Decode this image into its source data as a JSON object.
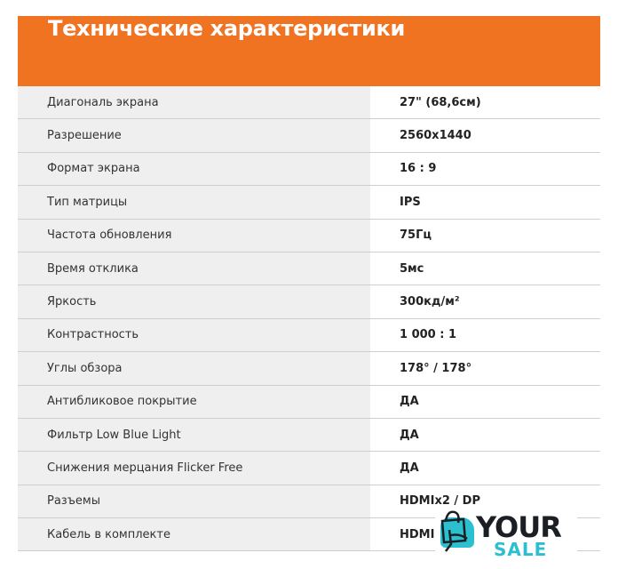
{
  "title": "Технические характеристики",
  "colors": {
    "accent": "#f07322",
    "logo_teal": "#2bbfcf"
  },
  "specs": [
    {
      "label": "Диагональ экрана",
      "value": "27\" (68,6см)"
    },
    {
      "label": "Разрешение",
      "value": "2560x1440"
    },
    {
      "label": "Формат экрана",
      "value": "16 : 9"
    },
    {
      "label": "Тип матрицы",
      "value": "IPS"
    },
    {
      "label": "Частота обновления",
      "value": "75Гц"
    },
    {
      "label": "Время отклика",
      "value": "5мс"
    },
    {
      "label": "Яркость",
      "value": "300кд/м²"
    },
    {
      "label": "Контрастность",
      "value": "1 000 : 1"
    },
    {
      "label": "Углы обзора",
      "value": "178° / 178°"
    },
    {
      "label": "Антибликовое покрытие",
      "value": "ДА"
    },
    {
      "label": "Фильтр Low Blue Light",
      "value": "ДА"
    },
    {
      "label": "Снижения мерцания Flicker Free",
      "value": "ДА"
    },
    {
      "label": "Разъемы",
      "value": "HDMIx2 / DP"
    },
    {
      "label": "Кабель в комплекте",
      "value": "HDMI"
    }
  ],
  "logo": {
    "line1": "YOUR",
    "line2": "SALE",
    "icon": "shopping-bag-hand-icon"
  }
}
